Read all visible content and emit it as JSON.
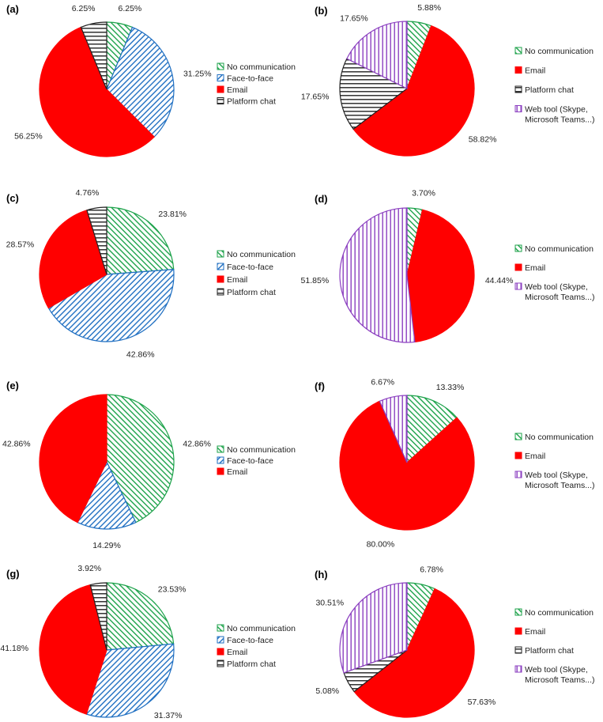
{
  "chart_data": [
    {
      "panel": "(a)",
      "type": "pie",
      "labels": [
        "No communication",
        "Face-to-face",
        "Email",
        "Platform chat"
      ],
      "values": [
        6.25,
        31.25,
        56.25,
        6.25
      ],
      "value_labels": [
        "6.25%",
        "31.25%",
        "56.25%",
        "6.25%"
      ],
      "colors": [
        "#1ca24a",
        "#1f6fc2",
        "#ff0000",
        "#222222"
      ],
      "patterns": [
        "diag-left",
        "diag-right",
        "solid",
        "horiz"
      ]
    },
    {
      "panel": "(b)",
      "type": "pie",
      "labels": [
        "No communication",
        "Email",
        "Platform chat",
        "Web tool (Skype, Microsoft Teams...)"
      ],
      "values": [
        5.88,
        58.82,
        17.65,
        17.65
      ],
      "value_labels": [
        "5.88%",
        "58.82%",
        "17.65%",
        "17.65%"
      ],
      "colors": [
        "#1ca24a",
        "#ff0000",
        "#222222",
        "#8b3fc0"
      ],
      "patterns": [
        "diag-left",
        "solid",
        "horiz",
        "vert"
      ]
    },
    {
      "panel": "(c)",
      "type": "pie",
      "labels": [
        "No communication",
        "Face-to-face",
        "Email",
        "Platform chat"
      ],
      "values": [
        23.81,
        42.86,
        28.57,
        4.76
      ],
      "value_labels": [
        "23.81%",
        "42.86%",
        "28.57%",
        "4.76%"
      ],
      "colors": [
        "#1ca24a",
        "#1f6fc2",
        "#ff0000",
        "#222222"
      ],
      "patterns": [
        "diag-left",
        "diag-right",
        "solid",
        "horiz"
      ]
    },
    {
      "panel": "(d)",
      "type": "pie",
      "labels": [
        "No communication",
        "Email",
        "Web tool (Skype, Microsoft Teams...)"
      ],
      "values": [
        3.7,
        44.44,
        51.85
      ],
      "value_labels": [
        "3.70%",
        "44.44%",
        "51.85%"
      ],
      "colors": [
        "#1ca24a",
        "#ff0000",
        "#8b3fc0"
      ],
      "patterns": [
        "diag-left",
        "solid",
        "vert"
      ]
    },
    {
      "panel": "(e)",
      "type": "pie",
      "labels": [
        "No communication",
        "Face-to-face",
        "Email"
      ],
      "values": [
        42.86,
        14.29,
        42.86
      ],
      "value_labels": [
        "42.86%",
        "14.29%",
        "42.86%"
      ],
      "colors": [
        "#1ca24a",
        "#1f6fc2",
        "#ff0000"
      ],
      "patterns": [
        "diag-left",
        "diag-right",
        "solid"
      ]
    },
    {
      "panel": "(f)",
      "type": "pie",
      "labels": [
        "No communication",
        "Email",
        "Web tool (Skype, Microsoft Teams...)"
      ],
      "values": [
        13.33,
        80.0,
        6.67
      ],
      "value_labels": [
        "13.33%",
        "80.00%",
        "6.67%"
      ],
      "colors": [
        "#1ca24a",
        "#ff0000",
        "#8b3fc0"
      ],
      "patterns": [
        "diag-left",
        "solid",
        "vert"
      ]
    },
    {
      "panel": "(g)",
      "type": "pie",
      "labels": [
        "No communication",
        "Face-to-face",
        "Email",
        "Platform chat"
      ],
      "values": [
        23.53,
        31.37,
        41.18,
        3.92
      ],
      "value_labels": [
        "23.53%",
        "31.37%",
        "41.18%",
        "3.92%"
      ],
      "colors": [
        "#1ca24a",
        "#1f6fc2",
        "#ff0000",
        "#222222"
      ],
      "patterns": [
        "diag-left",
        "diag-right",
        "solid",
        "horiz"
      ]
    },
    {
      "panel": "(h)",
      "type": "pie",
      "labels": [
        "No communication",
        "Email",
        "Platform chat",
        "Web tool (Skype, Microsoft Teams...)"
      ],
      "values": [
        6.78,
        57.63,
        5.08,
        30.51
      ],
      "value_labels": [
        "6.78%",
        "57.63%",
        "5.08%",
        "30.51%"
      ],
      "colors": [
        "#1ca24a",
        "#ff0000",
        "#222222",
        "#8b3fc0"
      ],
      "patterns": [
        "diag-left",
        "solid",
        "horiz",
        "vert"
      ]
    }
  ]
}
